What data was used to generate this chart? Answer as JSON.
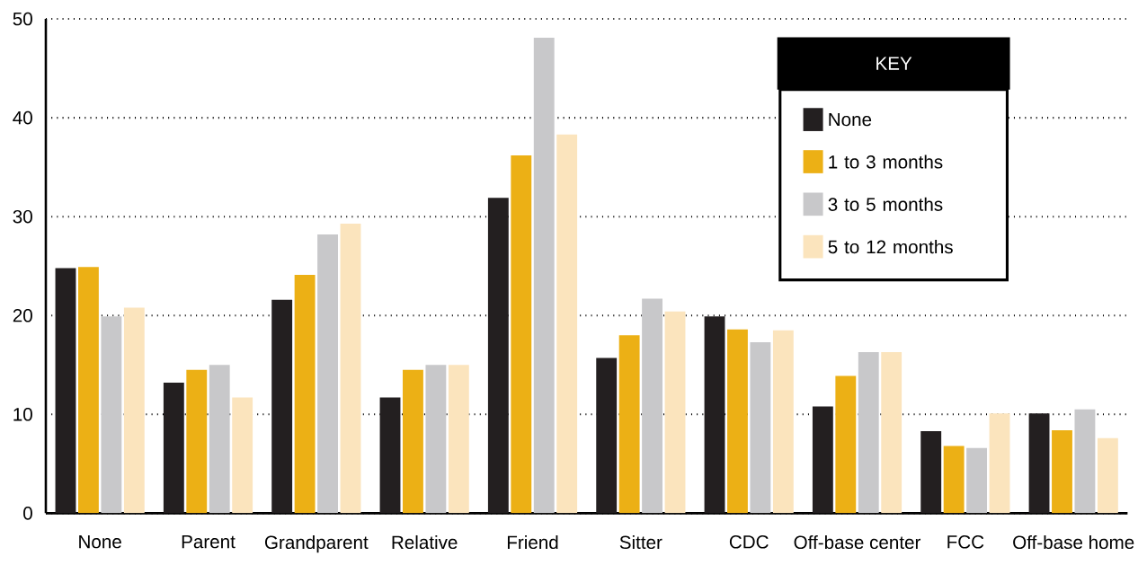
{
  "chart_data": {
    "type": "bar",
    "categories": [
      "None",
      "Parent",
      "Grandparent",
      "Relative",
      "Friend",
      "Sitter",
      "CDC",
      "Off-base center",
      "FCC",
      "Off-base home"
    ],
    "series": [
      {
        "name": "None",
        "color": "#231f20",
        "values": [
          24.8,
          13.2,
          21.6,
          11.7,
          31.9,
          15.7,
          19.9,
          10.8,
          8.3,
          10.1
        ]
      },
      {
        "name": "1 to 3 months",
        "color": "#ecb015",
        "values": [
          24.9,
          14.5,
          24.1,
          14.5,
          36.2,
          18.0,
          18.6,
          13.9,
          6.8,
          8.4
        ]
      },
      {
        "name": "3 to 5 months",
        "color": "#c8c8ca",
        "values": [
          19.9,
          15.0,
          28.2,
          15.0,
          48.1,
          21.7,
          17.3,
          16.3,
          6.6,
          10.5
        ]
      },
      {
        "name": "5 to 12 months",
        "color": "#fbe4bd",
        "values": [
          20.8,
          11.7,
          29.3,
          15.0,
          38.3,
          20.4,
          18.5,
          16.3,
          10.1,
          7.6
        ]
      }
    ],
    "ylim": [
      0,
      50
    ],
    "yticks": [
      0,
      10,
      20,
      30,
      40,
      50
    ],
    "grid": "y",
    "legend": "top right",
    "legend_title": "KEY"
  }
}
